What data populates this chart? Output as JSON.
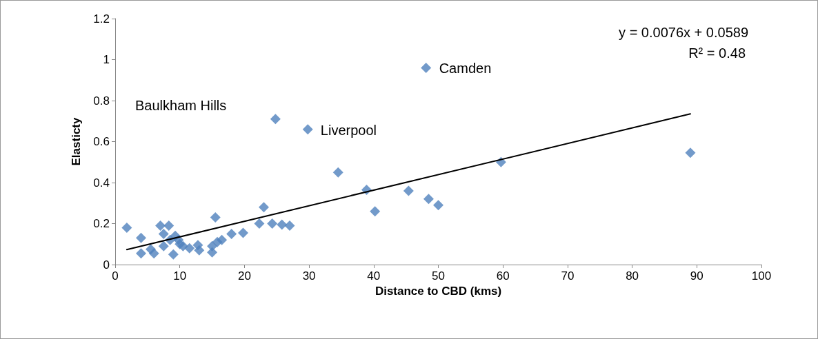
{
  "chart_data": {
    "type": "scatter",
    "xlabel": "Distance to CBD (kms)",
    "ylabel": "Elasticty",
    "xlim": [
      0,
      100
    ],
    "xticks": [
      0,
      10,
      20,
      30,
      40,
      50,
      60,
      70,
      80,
      90,
      100
    ],
    "ylim": [
      0,
      1.2
    ],
    "yticks": [
      0,
      0.2,
      0.4,
      0.6,
      0.8,
      1,
      1.2
    ],
    "marker": "diamond",
    "series": [
      {
        "color": "#4f81bd",
        "x": [
          1.8,
          4,
          4,
          5.5,
          6,
          7,
          7.5,
          7.5,
          8.3,
          8.5,
          9,
          9.3,
          9.8,
          10,
          10.5,
          11.5,
          12.8,
          13,
          15,
          15,
          15.5,
          15.8,
          16.5,
          18,
          19.8,
          22.3,
          23,
          24.3,
          25.8,
          27,
          24.8,
          29.8,
          34.5,
          38.9,
          40.2,
          45.4,
          48.5,
          50,
          59.7,
          89,
          48.1
        ],
        "values": [
          0.18,
          0.13,
          0.055,
          0.075,
          0.055,
          0.19,
          0.15,
          0.09,
          0.19,
          0.12,
          0.05,
          0.14,
          0.12,
          0.1,
          0.09,
          0.08,
          0.095,
          0.07,
          0.06,
          0.09,
          0.23,
          0.11,
          0.12,
          0.15,
          0.155,
          0.2,
          0.28,
          0.2,
          0.195,
          0.19,
          0.71,
          0.66,
          0.45,
          0.365,
          0.26,
          0.36,
          0.32,
          0.29,
          0.5,
          0.545,
          0.96
        ]
      },
      {
        "type": "line",
        "color": "#000000",
        "marker": "none",
        "line_style": "solid",
        "x": [
          1.8,
          89
        ],
        "values": [
          0.073,
          0.735
        ]
      }
    ],
    "annotations": [
      "y = 0.0076x + 0.0589",
      "R² = 0.48",
      "Baulkham Hills",
      {
        "text": "Camden",
        "x": 48.1,
        "y": 0.96
      },
      {
        "text": "Liverpool",
        "x": 29.8,
        "y": 0.66
      }
    ]
  }
}
